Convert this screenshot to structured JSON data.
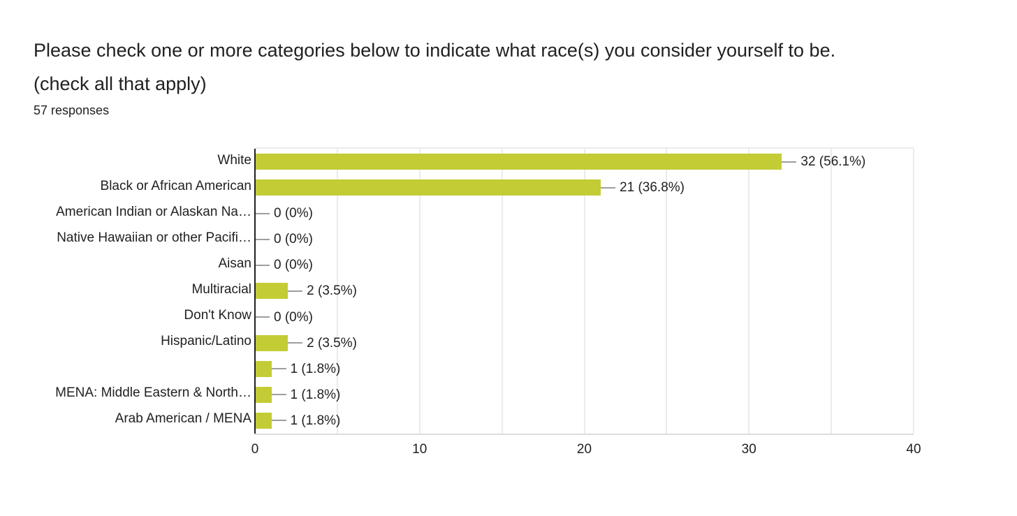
{
  "header": {
    "title": "Please check one or more categories below to indicate what race(s) you consider yourself to be. (check all that apply)",
    "title_lines": [
      "Please check one or more categories below to indicate what race(s) you consider yourself to be.",
      "(check all that apply)"
    ],
    "responses_count": "57 responses"
  },
  "colors": {
    "bar": "#c3cc35",
    "connector": "#9e9e9e",
    "grid": "#ebebeb",
    "axis": "#212121",
    "text": "#212121",
    "background": "#ffffff"
  },
  "chart_data": {
    "type": "bar",
    "orientation": "horizontal",
    "title": "Please check one or more categories below to indicate what race(s) you consider yourself to be. (check all that apply)",
    "subtitle": "57 responses",
    "categories": [
      "White",
      "Black or African American",
      "American Indian or Alaskan Na…",
      "Native Hawaiian or other Pacifi…",
      "Aisan",
      "Multiracial",
      "Don't Know",
      "Hispanic/Latino",
      "",
      "MENA: Middle Eastern & North…",
      "Arab American / MENA"
    ],
    "values": [
      32,
      21,
      0,
      0,
      0,
      2,
      0,
      2,
      1,
      1,
      1
    ],
    "value_labels": [
      "32 (56.1%)",
      "21 (36.8%)",
      "0 (0%)",
      "0 (0%)",
      "0 (0%)",
      "2 (3.5%)",
      "0 (0%)",
      "2 (3.5%)",
      "1 (1.8%)",
      "1 (1.8%)",
      "1 (1.8%)"
    ],
    "xlim": [
      0,
      40
    ],
    "xticks": [
      "0",
      "10",
      "20",
      "30",
      "40"
    ],
    "grid_interval": 5,
    "grid": true,
    "legend": false,
    "xlabel": "",
    "ylabel": ""
  }
}
